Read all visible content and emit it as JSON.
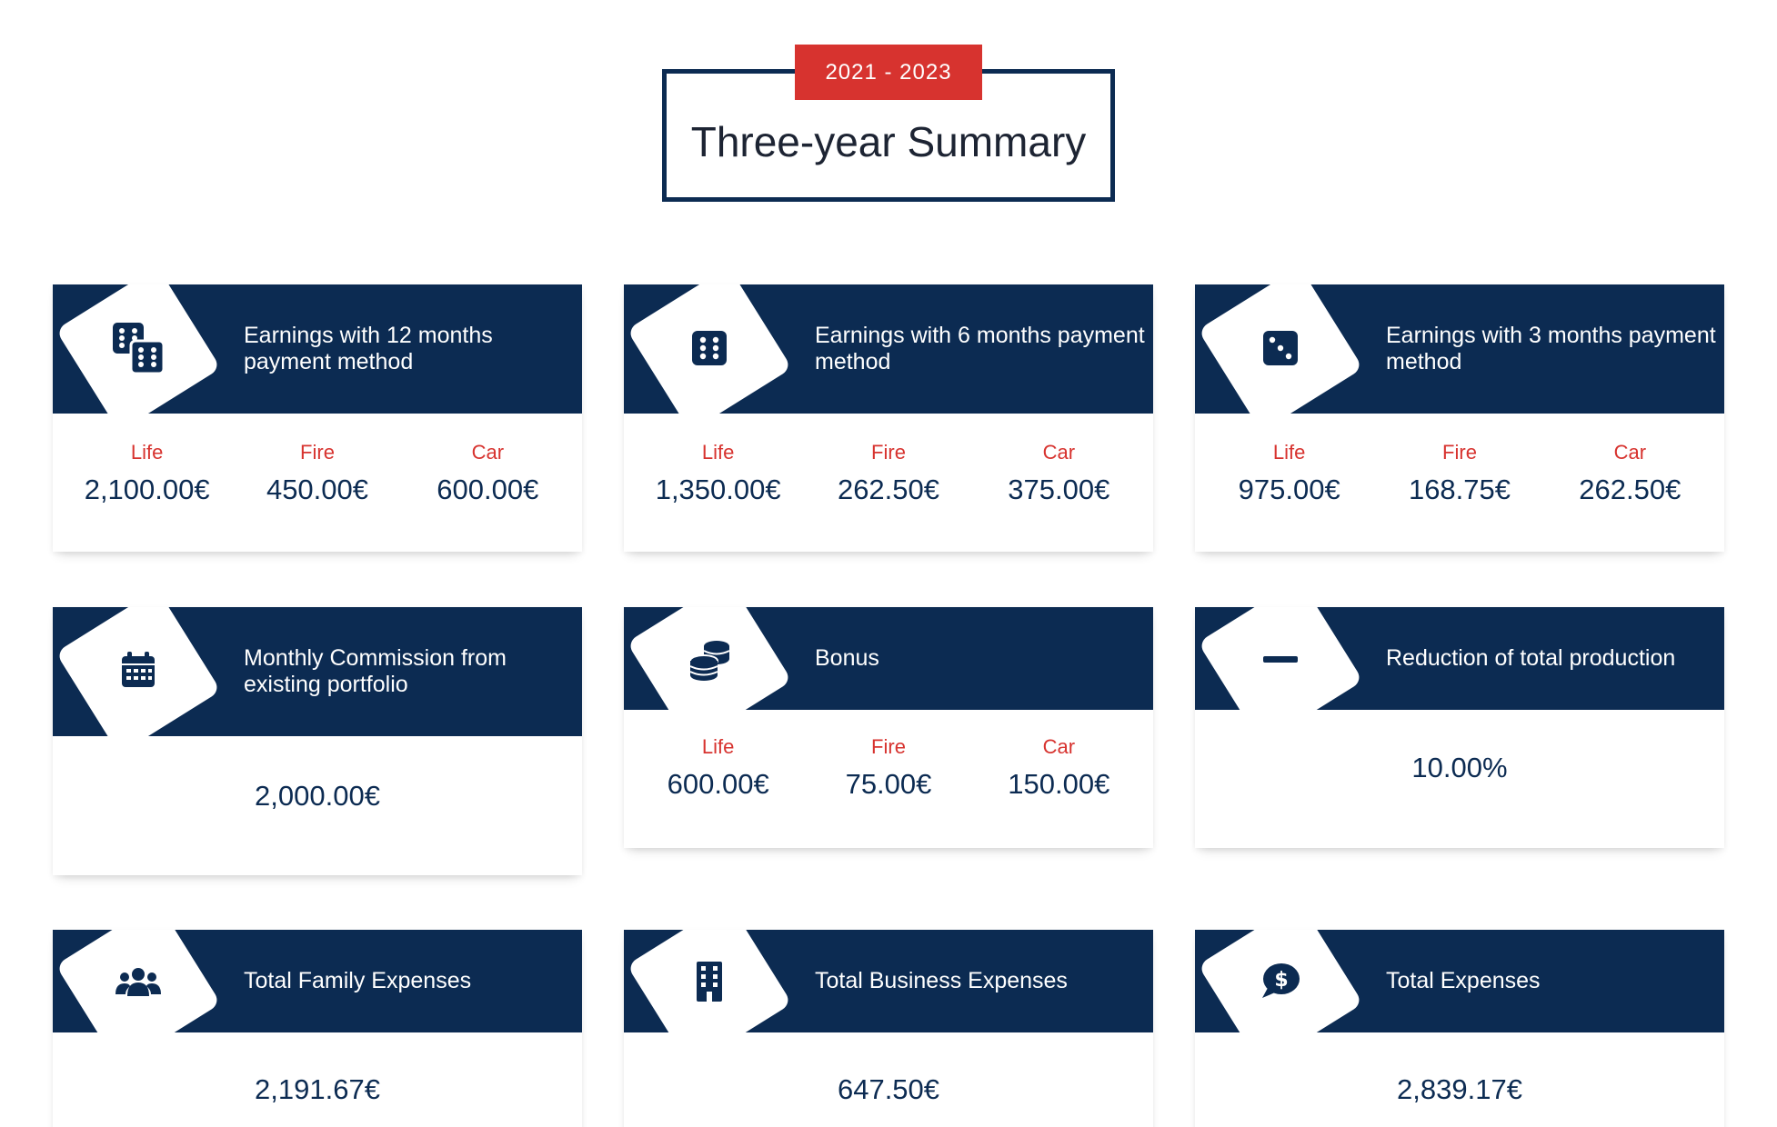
{
  "header": {
    "period": "2021 - 2023",
    "title": "Three-year Summary"
  },
  "colors": {
    "navy": "#0c2b52",
    "accent": "#d7332f"
  },
  "cards": {
    "earn12": {
      "icon": "dice-pair-icon",
      "title_lines": [
        "Earnings with 12 months",
        "payment method"
      ],
      "values": [
        {
          "label": "Life",
          "value": "2,100.00€"
        },
        {
          "label": "Fire",
          "value": "450.00€"
        },
        {
          "label": "Car",
          "value": "600.00€"
        }
      ]
    },
    "earn6": {
      "icon": "dice-six-icon",
      "title_lines": [
        "Earnings with 6 months payment",
        "method"
      ],
      "values": [
        {
          "label": "Life",
          "value": "1,350.00€"
        },
        {
          "label": "Fire",
          "value": "262.50€"
        },
        {
          "label": "Car",
          "value": "375.00€"
        }
      ]
    },
    "earn3": {
      "icon": "dice-three-icon",
      "title_lines": [
        "Earnings with 3 months payment",
        "method"
      ],
      "values": [
        {
          "label": "Life",
          "value": "975.00€"
        },
        {
          "label": "Fire",
          "value": "168.75€"
        },
        {
          "label": "Car",
          "value": "262.50€"
        }
      ]
    },
    "commission": {
      "icon": "calendar-icon",
      "title_lines": [
        "Monthly Commission from",
        "existing portfolio"
      ],
      "value": "2,000.00€"
    },
    "bonus": {
      "icon": "coins-icon",
      "title": "Bonus",
      "values": [
        {
          "label": "Life",
          "value": "600.00€"
        },
        {
          "label": "Fire",
          "value": "75.00€"
        },
        {
          "label": "Car",
          "value": "150.00€"
        }
      ]
    },
    "reduction": {
      "icon": "minus-icon",
      "title": "Reduction of total production",
      "value": "10.00%"
    },
    "family": {
      "icon": "users-icon",
      "title": "Total Family Expenses",
      "value": "2,191.67€"
    },
    "business": {
      "icon": "building-icon",
      "title": "Total Business Expenses",
      "value": "647.50€"
    },
    "total": {
      "icon": "dollar-comment-icon",
      "title": "Total Expenses",
      "value": "2,839.17€"
    }
  }
}
